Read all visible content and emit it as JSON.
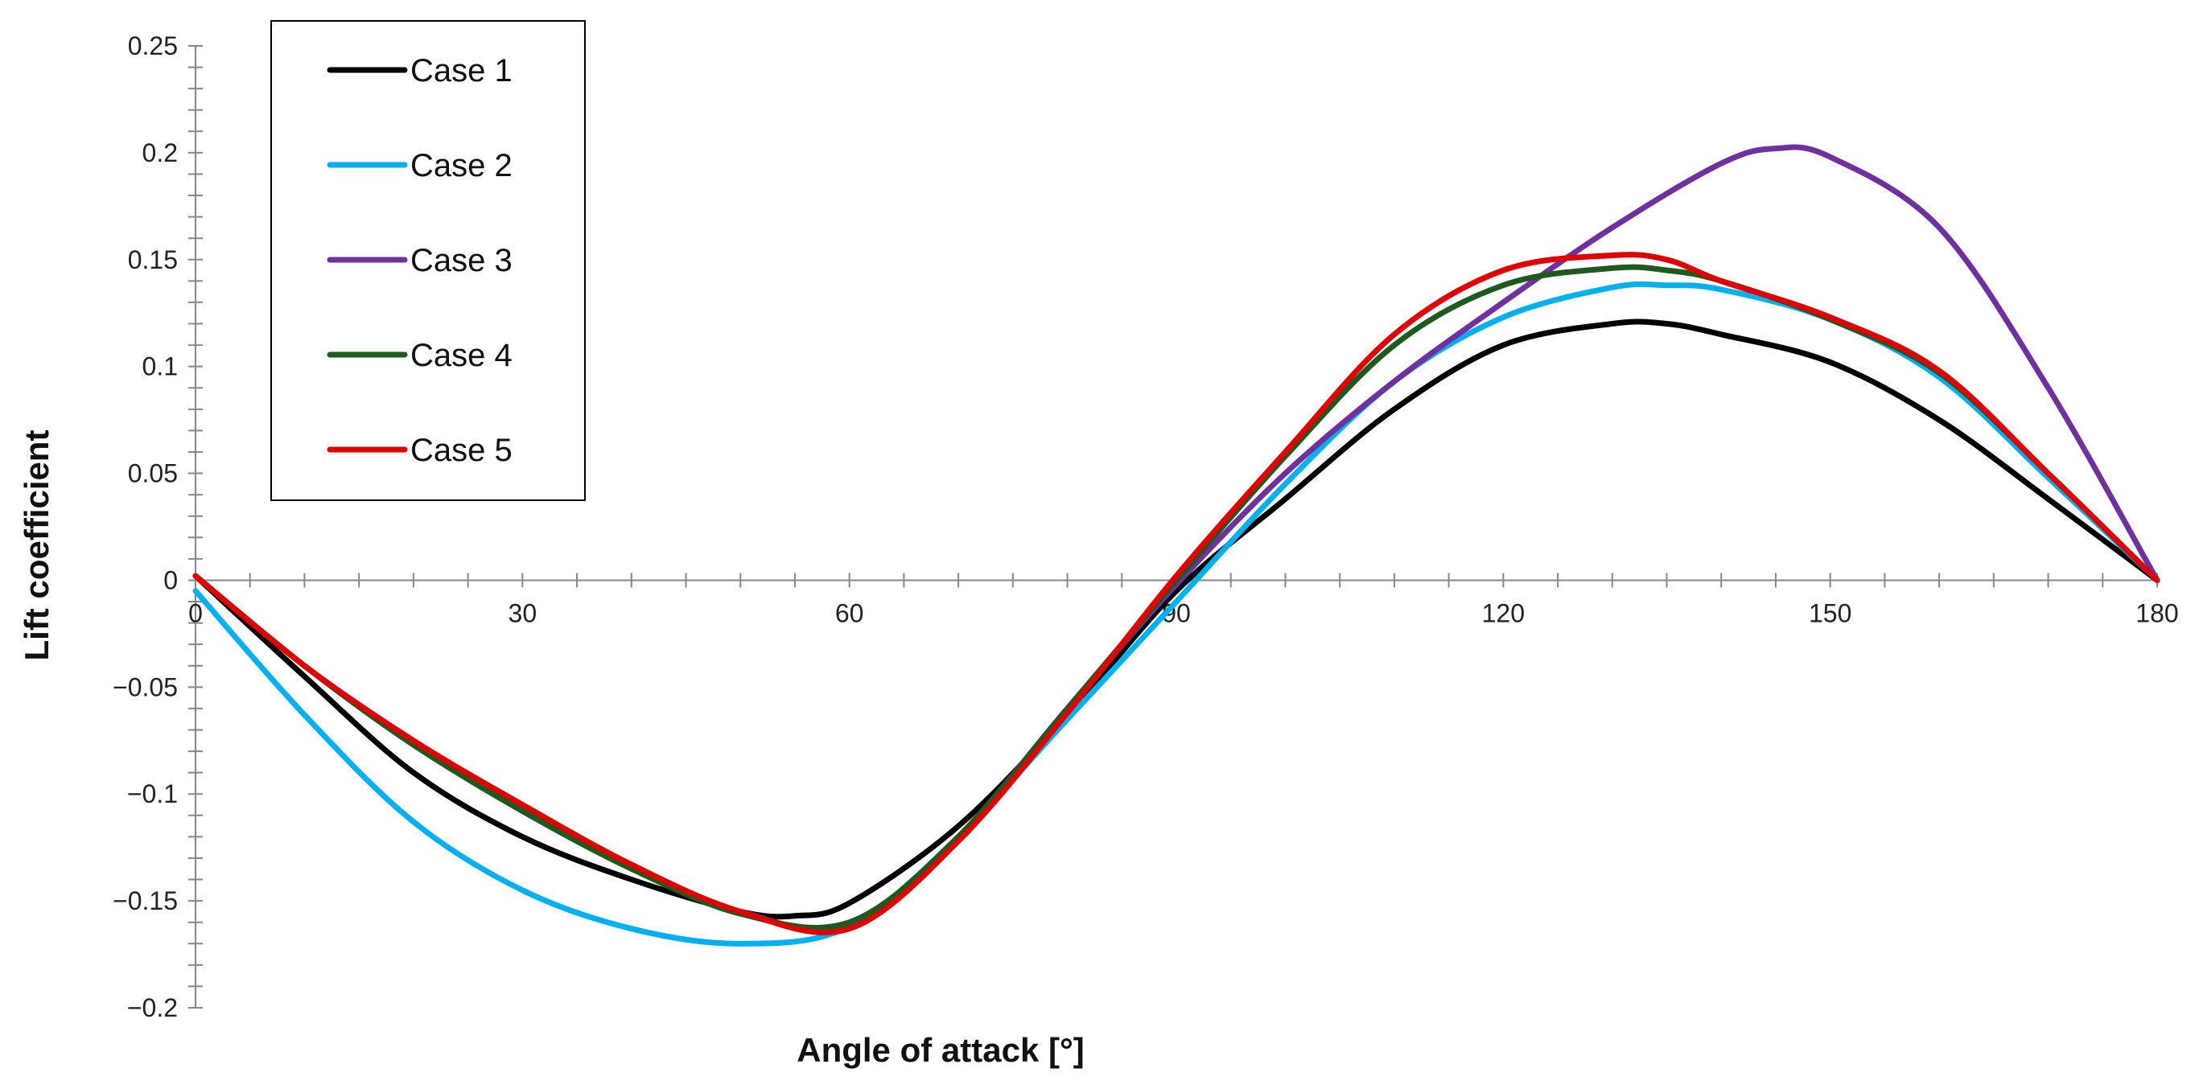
{
  "chart_data": {
    "type": "line",
    "title": "",
    "xlabel": "Angle of attack [°]",
    "ylabel": "Lift coefficient",
    "xlim": [
      0,
      180
    ],
    "ylim": [
      -0.2,
      0.25
    ],
    "x_ticks": [
      0,
      30,
      60,
      90,
      120,
      150,
      180
    ],
    "x_tick_labels": [
      "0",
      "30",
      "60",
      "90",
      "120",
      "150",
      "180"
    ],
    "y_ticks": [
      0.25,
      0.2,
      0.15,
      0.1,
      0.05,
      0,
      -0.05,
      -0.1,
      -0.15,
      -0.2
    ],
    "y_tick_labels": [
      "0.25",
      "0.2",
      "0.15",
      "0.1",
      "0.05",
      "0",
      "−0.05",
      "−0.1",
      "−0.15",
      "−0.2"
    ],
    "x_minor_step": 5,
    "y_minor_step": 0.01,
    "grid": false,
    "legend_position": "top-left",
    "series": [
      {
        "name": "Case 1",
        "color": "#000000",
        "points": [
          [
            0,
            0.002
          ],
          [
            10,
            -0.045
          ],
          [
            20,
            -0.09
          ],
          [
            30,
            -0.12
          ],
          [
            40,
            -0.14
          ],
          [
            50,
            -0.155
          ],
          [
            55,
            -0.157
          ],
          [
            60,
            -0.151
          ],
          [
            70,
            -0.115
          ],
          [
            80,
            -0.063
          ],
          [
            90,
            -0.005
          ],
          [
            100,
            0.038
          ],
          [
            110,
            0.08
          ],
          [
            120,
            0.11
          ],
          [
            130,
            0.12
          ],
          [
            135,
            0.12
          ],
          [
            140,
            0.115
          ],
          [
            150,
            0.102
          ],
          [
            160,
            0.075
          ],
          [
            170,
            0.038
          ],
          [
            180,
            0.0
          ]
        ]
      },
      {
        "name": "Case 2",
        "color": "#00B0F0",
        "points": [
          [
            0,
            -0.005
          ],
          [
            10,
            -0.063
          ],
          [
            20,
            -0.113
          ],
          [
            30,
            -0.145
          ],
          [
            40,
            -0.163
          ],
          [
            50,
            -0.17
          ],
          [
            60,
            -0.162
          ],
          [
            70,
            -0.12
          ],
          [
            80,
            -0.065
          ],
          [
            90,
            -0.01
          ],
          [
            100,
            0.045
          ],
          [
            110,
            0.093
          ],
          [
            120,
            0.123
          ],
          [
            130,
            0.137
          ],
          [
            135,
            0.138
          ],
          [
            140,
            0.136
          ],
          [
            150,
            0.122
          ],
          [
            160,
            0.095
          ],
          [
            170,
            0.048
          ],
          [
            180,
            0.0
          ]
        ]
      },
      {
        "name": "Case 3",
        "color": "#7030A0",
        "points": [
          [
            0,
            0.002
          ],
          [
            10,
            -0.04
          ],
          [
            20,
            -0.077
          ],
          [
            30,
            -0.107
          ],
          [
            40,
            -0.135
          ],
          [
            50,
            -0.155
          ],
          [
            60,
            -0.162
          ],
          [
            70,
            -0.12
          ],
          [
            80,
            -0.06
          ],
          [
            90,
            -0.002
          ],
          [
            100,
            0.05
          ],
          [
            110,
            0.093
          ],
          [
            120,
            0.13
          ],
          [
            130,
            0.165
          ],
          [
            140,
            0.195
          ],
          [
            145,
            0.202
          ],
          [
            150,
            0.198
          ],
          [
            160,
            0.165
          ],
          [
            170,
            0.09
          ],
          [
            180,
            0.0
          ]
        ]
      },
      {
        "name": "Case 4",
        "color": "#1E5A1E",
        "points": [
          [
            0,
            0.002
          ],
          [
            10,
            -0.04
          ],
          [
            20,
            -0.077
          ],
          [
            30,
            -0.108
          ],
          [
            40,
            -0.135
          ],
          [
            50,
            -0.156
          ],
          [
            60,
            -0.16
          ],
          [
            70,
            -0.12
          ],
          [
            80,
            -0.06
          ],
          [
            90,
            0.0
          ],
          [
            100,
            0.058
          ],
          [
            110,
            0.11
          ],
          [
            120,
            0.138
          ],
          [
            130,
            0.146
          ],
          [
            135,
            0.145
          ],
          [
            140,
            0.14
          ],
          [
            150,
            0.122
          ],
          [
            160,
            0.097
          ],
          [
            170,
            0.05
          ],
          [
            180,
            0.0
          ]
        ]
      },
      {
        "name": "Case 5",
        "color": "#E00000",
        "points": [
          [
            0,
            0.002
          ],
          [
            10,
            -0.04
          ],
          [
            20,
            -0.075
          ],
          [
            30,
            -0.105
          ],
          [
            40,
            -0.133
          ],
          [
            50,
            -0.155
          ],
          [
            60,
            -0.163
          ],
          [
            70,
            -0.122
          ],
          [
            80,
            -0.062
          ],
          [
            90,
            0.002
          ],
          [
            100,
            0.06
          ],
          [
            110,
            0.115
          ],
          [
            120,
            0.145
          ],
          [
            130,
            0.152
          ],
          [
            135,
            0.15
          ],
          [
            140,
            0.14
          ],
          [
            150,
            0.123
          ],
          [
            160,
            0.098
          ],
          [
            170,
            0.05
          ],
          [
            180,
            0.0
          ]
        ]
      }
    ]
  }
}
